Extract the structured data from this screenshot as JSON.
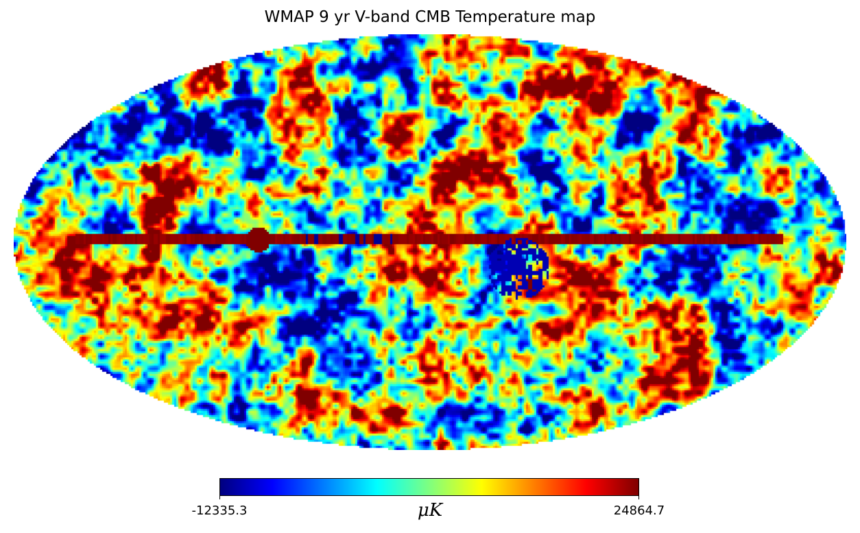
{
  "title": "WMAP 9 yr V-band CMB Temperature map",
  "map": {
    "projection": "Mollweide",
    "colormap": "jet",
    "colormap_stops": [
      "#00007f",
      "#0000ff",
      "#007fff",
      "#00ffff",
      "#7fff7f",
      "#ffff00",
      "#ff7f00",
      "#ff0000",
      "#7f0000"
    ],
    "background": "#ffffff",
    "content": "all-sky CMB temperature anisotropy with Galactic plane band"
  },
  "colorbar": {
    "min_label": "-12335.3",
    "max_label": "24864.7",
    "min": -12335.3,
    "max": 24864.7,
    "unit": "μK"
  }
}
